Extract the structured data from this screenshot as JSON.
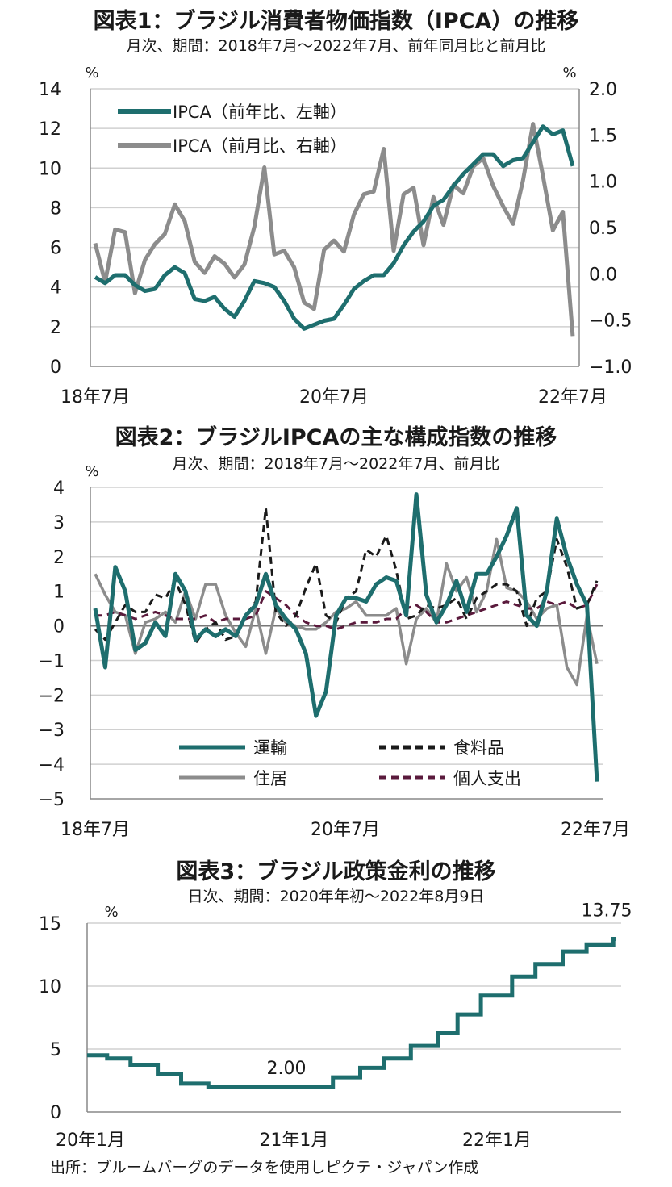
{
  "source": "出所：ブルームバーグのデータを使用しピクテ・ジャパン作成",
  "chart_data": [
    {
      "type": "line",
      "title": "図表1：ブラジル消費者物価指数（IPCA）の推移",
      "subtitle": "月次、期間：2018年7月～2022年7月、前年同月比と前月比",
      "left_unit": "%",
      "right_unit": "%",
      "ylim_left": [
        0,
        14
      ],
      "ylim_right": [
        -1.0,
        2.0
      ],
      "yticks_left": [
        "0",
        "2",
        "4",
        "6",
        "8",
        "10",
        "12",
        "14"
      ],
      "yticks_right": [
        "−1.0",
        "−0.5",
        "0.0",
        "0.5",
        "1.0",
        "1.5",
        "2.0"
      ],
      "xticks": [
        "18年7月",
        "20年7月",
        "22年7月"
      ],
      "legend": {
        "position": "top-left"
      },
      "series": [
        {
          "name": "IPCA（前年比、左軸）",
          "axis": "left",
          "color": "#1e6e6e",
          "values": [
            4.5,
            4.2,
            4.6,
            4.6,
            4.1,
            3.8,
            3.9,
            4.6,
            5.0,
            4.7,
            3.4,
            3.3,
            3.5,
            2.9,
            2.5,
            3.3,
            4.3,
            4.2,
            4.0,
            3.3,
            2.4,
            1.9,
            2.1,
            2.3,
            2.4,
            3.1,
            3.9,
            4.3,
            4.6,
            4.6,
            5.2,
            6.1,
            6.8,
            7.3,
            8.1,
            8.4,
            9.1,
            9.7,
            10.2,
            10.7,
            10.7,
            10.1,
            10.4,
            10.5,
            11.3,
            12.1,
            11.7,
            11.9,
            10.1
          ]
        },
        {
          "name": "IPCA（前月比、右軸）",
          "axis": "right",
          "color": "#8c8c8c",
          "values": [
            0.33,
            -0.09,
            0.48,
            0.45,
            -0.21,
            0.15,
            0.32,
            0.43,
            0.75,
            0.57,
            0.13,
            0.01,
            0.19,
            0.11,
            -0.04,
            0.1,
            0.51,
            1.15,
            0.21,
            0.25,
            0.07,
            -0.31,
            -0.38,
            0.26,
            0.36,
            0.24,
            0.64,
            0.86,
            0.89,
            1.35,
            0.25,
            0.86,
            0.93,
            0.31,
            0.83,
            0.53,
            0.96,
            0.87,
            1.16,
            1.25,
            0.95,
            0.73,
            0.54,
            1.01,
            1.62,
            1.06,
            0.47,
            0.67,
            -0.68
          ]
        }
      ]
    },
    {
      "type": "line",
      "title": "図表2：ブラジルIPCAの主な構成指数の推移",
      "subtitle": "月次、期間：2018年7月～2022年7月、前月比",
      "unit": "%",
      "ylim": [
        -5,
        4
      ],
      "yticks": [
        "−5",
        "−4",
        "−3",
        "−2",
        "−1",
        "0",
        "1",
        "2",
        "3",
        "4"
      ],
      "xticks": [
        "18年7月",
        "20年7月",
        "22年7月"
      ],
      "legend": {
        "position": "bottom"
      },
      "series": [
        {
          "name": "運輸",
          "color": "#1e6e6e",
          "dash": "solid",
          "values": [
            0.5,
            -1.2,
            1.7,
            1.0,
            -0.7,
            -0.5,
            0.1,
            -0.3,
            1.5,
            1.0,
            -0.4,
            -0.1,
            -0.3,
            -0.1,
            -0.3,
            0.3,
            0.6,
            1.5,
            0.6,
            0.2,
            -0.1,
            -0.8,
            -2.6,
            -1.9,
            0.3,
            0.8,
            0.8,
            0.7,
            1.2,
            1.4,
            1.3,
            0.3,
            3.8,
            0.9,
            0.1,
            0.6,
            1.3,
            0.4,
            1.5,
            1.5,
            2.0,
            2.6,
            3.4,
            0.3,
            0.0,
            1.0,
            3.1,
            2.0,
            1.2,
            0.6,
            -4.5
          ]
        },
        {
          "name": "食料品",
          "color": "#1a1a1a",
          "dash": "dash",
          "values": [
            -0.1,
            -0.4,
            0.1,
            0.6,
            0.4,
            0.4,
            0.9,
            0.8,
            1.3,
            0.6,
            -0.5,
            -0.1,
            0.1,
            -0.4,
            -0.3,
            0.3,
            0.7,
            3.4,
            0.4,
            0.0,
            0.3,
            1.1,
            1.8,
            0.3,
            0.1,
            0.8,
            1.0,
            2.2,
            2.0,
            2.6,
            1.6,
            0.2,
            0.3,
            0.6,
            0.5,
            0.6,
            0.8,
            0.2,
            0.8,
            1.0,
            1.2,
            1.2,
            1.0,
            0.0,
            0.8,
            1.0,
            2.5,
            1.7,
            0.5,
            0.6,
            1.3
          ]
        },
        {
          "name": "住居",
          "color": "#8c8c8c",
          "dash": "solid",
          "values": [
            1.5,
            0.9,
            0.4,
            0.3,
            -0.8,
            0.1,
            0.2,
            0.4,
            0.1,
            1.0,
            0.2,
            1.2,
            1.2,
            0.3,
            -0.2,
            -0.6,
            0.5,
            -0.8,
            0.5,
            0.1,
            0.0,
            -0.1,
            -0.1,
            0.1,
            0.4,
            0.5,
            0.7,
            0.3,
            0.3,
            0.3,
            0.5,
            -1.1,
            0.2,
            0.5,
            0.1,
            1.8,
            1.0,
            1.4,
            0.4,
            1.0,
            2.5,
            1.1,
            1.0,
            0.7,
            0.2,
            0.5,
            0.6,
            -1.2,
            -1.7,
            0.3,
            -1.1
          ]
        },
        {
          "name": "個人支出",
          "color": "#5a1a3c",
          "dash": "dash",
          "values": [
            0.3,
            0.3,
            0.4,
            0.3,
            0.2,
            0.3,
            0.4,
            0.3,
            0.2,
            0.2,
            0.2,
            0.3,
            0.1,
            0.2,
            0.2,
            0.2,
            0.3,
            1.0,
            0.8,
            0.6,
            0.3,
            0.1,
            0.0,
            0.0,
            -0.1,
            0.0,
            0.1,
            0.1,
            0.1,
            0.2,
            0.2,
            0.5,
            0.6,
            0.4,
            0.1,
            0.1,
            0.2,
            0.3,
            0.4,
            0.5,
            0.6,
            0.7,
            0.6,
            0.5,
            0.5,
            0.7,
            0.6,
            0.7,
            0.5,
            0.6,
            1.2
          ]
        }
      ]
    },
    {
      "type": "line",
      "title": "図表3：ブラジル政策金利の推移",
      "subtitle": "日次、期間：2020年年初～2022年8月9日",
      "unit": "%",
      "ylim": [
        0,
        15
      ],
      "yticks": [
        "0",
        "5",
        "10",
        "15"
      ],
      "xticks": [
        "20年1月",
        "21年1月",
        "22年1月"
      ],
      "annotations": [
        {
          "text": "2.00"
        },
        {
          "text": "13.75"
        }
      ],
      "series": [
        {
          "name": "",
          "color": "#1e6e6e",
          "step": true,
          "x": [
            "2020-01-01",
            "2020-02-06",
            "2020-03-19",
            "2020-05-07",
            "2020-06-18",
            "2020-08-06",
            "2021-03-18",
            "2021-05-06",
            "2021-06-17",
            "2021-08-05",
            "2021-09-23",
            "2021-10-28",
            "2021-12-09",
            "2022-02-03",
            "2022-03-17",
            "2022-05-05",
            "2022-06-17",
            "2022-08-04",
            "2022-08-09"
          ],
          "y": [
            4.5,
            4.25,
            3.75,
            3.0,
            2.25,
            2.0,
            2.75,
            3.5,
            4.25,
            5.25,
            6.25,
            7.75,
            9.25,
            10.75,
            11.75,
            12.75,
            13.25,
            13.75,
            13.75
          ]
        }
      ]
    }
  ]
}
